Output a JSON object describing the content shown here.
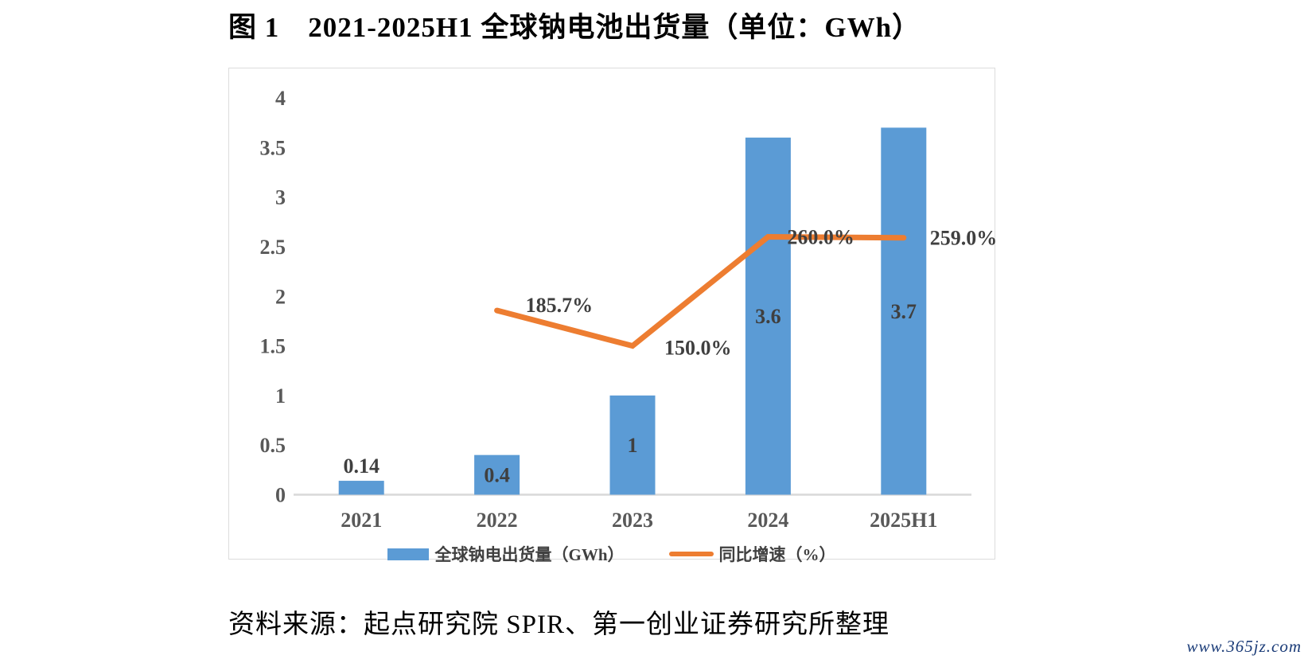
{
  "page": {
    "title": "图 1　2021-2025H1 全球钠电池出货量（单位：GWh）",
    "source_note": "资料来源：起点研究院 SPIR、第一创业证券研究所整理",
    "watermark": "www.365jz.com"
  },
  "chart_data": {
    "type": "bar",
    "subtype": "combo-bar-line",
    "title": "2021-2025H1 全球钠电池出货量（单位：GWh）",
    "categories": [
      "2021",
      "2022",
      "2023",
      "2024",
      "2025H1"
    ],
    "series": [
      {
        "name": "全球钠电出货量（GWh）",
        "type": "bar",
        "color": "#5B9BD5",
        "values": [
          0.14,
          0.4,
          1,
          3.6,
          3.7
        ],
        "labels": [
          "0.14",
          "0.4",
          "1",
          "3.6",
          "3.7"
        ]
      },
      {
        "name": "同比增速（%）",
        "type": "line",
        "color": "#ED7D31",
        "values": [
          null,
          185.7,
          150.0,
          260.0,
          259.0
        ],
        "labels": [
          null,
          "185.7%",
          "150.0%",
          "260.0%",
          "259.0%"
        ]
      }
    ],
    "yaxis": {
      "min": 0,
      "max": 4,
      "step": 0.5,
      "ticks": [
        "0",
        "0.5",
        "1",
        "1.5",
        "2",
        "2.5",
        "3",
        "3.5",
        "4"
      ]
    },
    "line_value_mapping": "percent divided by 100 plotted on left axis",
    "grid": false,
    "legend_position": "bottom",
    "legend": [
      "全球钠电出货量（GWh）",
      "同比增速（%）"
    ]
  }
}
